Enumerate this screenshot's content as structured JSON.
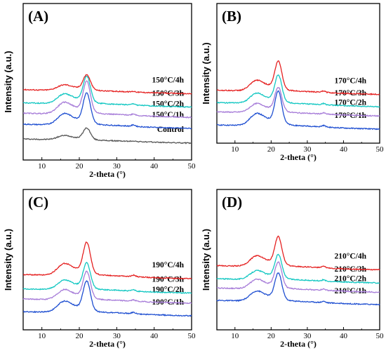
{
  "chart_data": [
    {
      "type": "line",
      "panel": "(A)",
      "xlabel": "2-theta (°)",
      "ylabel": "Intensity (a.u.)",
      "xlim": [
        5,
        50
      ],
      "xticks": [
        10,
        20,
        30,
        40,
        50
      ],
      "x_peaks_deg": [
        15.8,
        22.0,
        34.5
      ],
      "series": [
        {
          "name": "Control",
          "color": "#555555",
          "offset": 0.0,
          "peak_height": 0.42
        },
        {
          "name": "150°C/1h",
          "color": "#1f4fd1",
          "offset": 1.0,
          "peak_height": 1.1
        },
        {
          "name": "150°C/2h",
          "color": "#a67bd8",
          "offset": 1.75,
          "peak_height": 1.12
        },
        {
          "name": "150°C/3h",
          "color": "#12c7c2",
          "offset": 2.45,
          "peak_height": 0.95
        },
        {
          "name": "150°C/4h",
          "color": "#e52222",
          "offset": 3.35,
          "peak_height": 0.55
        }
      ]
    },
    {
      "type": "line",
      "panel": "(B)",
      "xlabel": "2-theta (°)",
      "ylabel": "Intensity (a.u.)",
      "xlim": [
        5,
        50
      ],
      "xticks": [
        10,
        20,
        30,
        40,
        50
      ],
      "x_peaks_deg": [
        15.8,
        22.0,
        34.5
      ],
      "series": [
        {
          "name": "170°C/1h",
          "color": "#1f4fd1",
          "offset": 0.0,
          "peak_height": 1.15
        },
        {
          "name": "170°C/2h",
          "color": "#a67bd8",
          "offset": 0.85,
          "peak_height": 0.85
        },
        {
          "name": "170°C/3h",
          "color": "#12c7c2",
          "offset": 1.45,
          "peak_height": 0.95
        },
        {
          "name": "170°C/4h",
          "color": "#e52222",
          "offset": 2.25,
          "peak_height": 1.0
        }
      ]
    },
    {
      "type": "line",
      "panel": "(C)",
      "xlabel": "2-theta (°)",
      "ylabel": "Intensity (a.u.)",
      "xlim": [
        5,
        50
      ],
      "xticks": [
        10,
        20,
        30,
        40,
        50
      ],
      "x_peaks_deg": [
        15.8,
        22.0,
        34.5
      ],
      "series": [
        {
          "name": "190°C/1h",
          "color": "#1f4fd1",
          "offset": 0.0,
          "peak_height": 1.0
        },
        {
          "name": "190°C/2h",
          "color": "#a67bd8",
          "offset": 0.75,
          "peak_height": 0.9
        },
        {
          "name": "190°C/3h",
          "color": "#12c7c2",
          "offset": 1.35,
          "peak_height": 0.85
        },
        {
          "name": "190°C/4h",
          "color": "#e52222",
          "offset": 2.2,
          "peak_height": 1.05
        }
      ]
    },
    {
      "type": "line",
      "panel": "(D)",
      "xlabel": "2-theta (°)",
      "ylabel": "Intensity (a.u.)",
      "xlim": [
        5,
        50
      ],
      "xticks": [
        10,
        20,
        30,
        40,
        50
      ],
      "x_peaks_deg": [
        15.8,
        22.0,
        34.5
      ],
      "series": [
        {
          "name": "210°C/1h",
          "color": "#1f4fd1",
          "offset": 0.0,
          "peak_height": 0.9
        },
        {
          "name": "210°C/2h",
          "color": "#a67bd8",
          "offset": 0.8,
          "peak_height": 0.85
        },
        {
          "name": "210°C/3h",
          "color": "#12c7c2",
          "offset": 1.4,
          "peak_height": 0.8
        },
        {
          "name": "210°C/4h",
          "color": "#e52222",
          "offset": 2.25,
          "peak_height": 0.95
        }
      ]
    }
  ]
}
